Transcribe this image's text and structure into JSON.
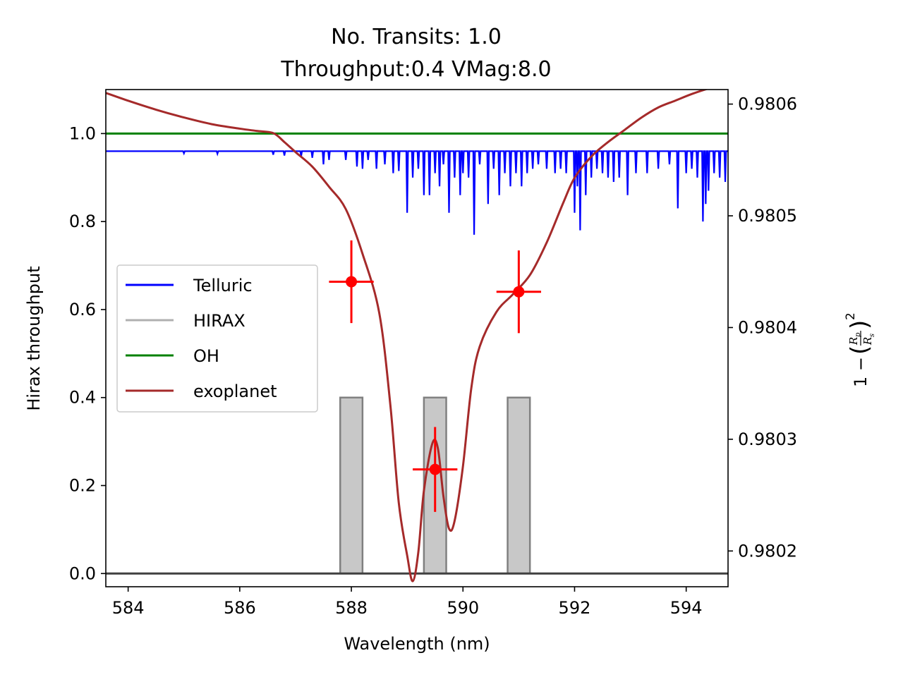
{
  "chart_data": {
    "type": "line",
    "title": [
      "No. Transits: 1.0",
      "Throughput:0.4 VMag:8.0"
    ],
    "xlabel": "Wavelength (nm)",
    "ylabel": "Hirax throughput",
    "y2label": "1 − (Rp/Rs)²",
    "y2label_parts": {
      "prefix": "1 −",
      "numerator": "R",
      "numerator_sub": "p",
      "denominator": "R",
      "denominator_sub": "s",
      "power": "2"
    },
    "xlim": [
      583.6,
      594.75
    ],
    "ylim": [
      -0.03,
      1.1
    ],
    "y2lim": [
      0.980168,
      0.980613
    ],
    "xticks": [
      584,
      586,
      588,
      590,
      592,
      594
    ],
    "xtick_labels": [
      "584",
      "586",
      "588",
      "590",
      "592",
      "594"
    ],
    "yticks": [
      0.0,
      0.2,
      0.4,
      0.6,
      0.8,
      1.0
    ],
    "ytick_labels": [
      "0.0",
      "0.2",
      "0.4",
      "0.6",
      "0.8",
      "1.0"
    ],
    "y2ticks": [
      0.9802,
      0.9803,
      0.9804,
      0.9805,
      0.9806
    ],
    "y2tick_labels": [
      "0.9802",
      "0.9803",
      "0.9804",
      "0.9805",
      "0.9806"
    ],
    "grid": false,
    "legend": {
      "placement": "center-left",
      "entries": [
        {
          "label": "Telluric",
          "color": "#0000ff"
        },
        {
          "label": "HIRAX",
          "color": "#b0b0b0"
        },
        {
          "label": "OH",
          "color": "#008000"
        },
        {
          "label": "exoplanet",
          "color": "#a52a2a"
        }
      ]
    },
    "series": [
      {
        "name": "OH",
        "color": "#008000",
        "axis": "left",
        "x": [
          583.6,
          594.75
        ],
        "y": [
          1.0,
          1.0
        ]
      },
      {
        "name": "HIRAX",
        "color": "#808080",
        "axis": "left",
        "bands": [
          {
            "x0": 587.8,
            "x1": 588.2,
            "height": 0.4
          },
          {
            "x0": 589.3,
            "x1": 589.7,
            "height": 0.4
          },
          {
            "x0": 590.8,
            "x1": 591.2,
            "height": 0.4
          }
        ],
        "baseline": 0.0
      },
      {
        "name": "Telluric",
        "color": "#0000ff",
        "axis": "left",
        "continuum": 0.96,
        "lines": [
          {
            "x": 585.0,
            "depth": 0.005
          },
          {
            "x": 585.6,
            "depth": 0.006
          },
          {
            "x": 586.6,
            "depth": 0.008
          },
          {
            "x": 586.8,
            "depth": 0.01
          },
          {
            "x": 587.1,
            "depth": 0.012
          },
          {
            "x": 587.3,
            "depth": 0.015
          },
          {
            "x": 587.5,
            "depth": 0.03
          },
          {
            "x": 587.6,
            "depth": 0.02
          },
          {
            "x": 587.9,
            "depth": 0.02
          },
          {
            "x": 588.1,
            "depth": 0.035
          },
          {
            "x": 588.2,
            "depth": 0.04
          },
          {
            "x": 588.3,
            "depth": 0.02
          },
          {
            "x": 588.45,
            "depth": 0.04
          },
          {
            "x": 588.6,
            "depth": 0.03
          },
          {
            "x": 588.75,
            "depth": 0.05
          },
          {
            "x": 588.85,
            "depth": 0.045
          },
          {
            "x": 589.0,
            "depth": 0.14
          },
          {
            "x": 589.1,
            "depth": 0.06
          },
          {
            "x": 589.2,
            "depth": 0.04
          },
          {
            "x": 589.3,
            "depth": 0.1
          },
          {
            "x": 589.4,
            "depth": 0.1
          },
          {
            "x": 589.5,
            "depth": 0.05
          },
          {
            "x": 589.58,
            "depth": 0.08
          },
          {
            "x": 589.65,
            "depth": 0.03
          },
          {
            "x": 589.75,
            "depth": 0.14
          },
          {
            "x": 589.85,
            "depth": 0.06
          },
          {
            "x": 589.95,
            "depth": 0.1
          },
          {
            "x": 590.0,
            "depth": 0.05
          },
          {
            "x": 590.1,
            "depth": 0.06
          },
          {
            "x": 590.2,
            "depth": 0.19
          },
          {
            "x": 590.3,
            "depth": 0.03
          },
          {
            "x": 590.45,
            "depth": 0.12
          },
          {
            "x": 590.55,
            "depth": 0.04
          },
          {
            "x": 590.65,
            "depth": 0.1
          },
          {
            "x": 590.75,
            "depth": 0.05
          },
          {
            "x": 590.85,
            "depth": 0.08
          },
          {
            "x": 590.95,
            "depth": 0.05
          },
          {
            "x": 591.05,
            "depth": 0.08
          },
          {
            "x": 591.15,
            "depth": 0.05
          },
          {
            "x": 591.25,
            "depth": 0.04
          },
          {
            "x": 591.35,
            "depth": 0.03
          },
          {
            "x": 591.5,
            "depth": 0.04
          },
          {
            "x": 591.65,
            "depth": 0.05
          },
          {
            "x": 591.75,
            "depth": 0.04
          },
          {
            "x": 591.85,
            "depth": 0.05
          },
          {
            "x": 592.0,
            "depth": 0.14
          },
          {
            "x": 592.05,
            "depth": 0.08
          },
          {
            "x": 592.1,
            "depth": 0.18
          },
          {
            "x": 592.2,
            "depth": 0.1
          },
          {
            "x": 592.3,
            "depth": 0.06
          },
          {
            "x": 592.4,
            "depth": 0.04
          },
          {
            "x": 592.5,
            "depth": 0.05
          },
          {
            "x": 592.6,
            "depth": 0.06
          },
          {
            "x": 592.7,
            "depth": 0.07
          },
          {
            "x": 592.8,
            "depth": 0.06
          },
          {
            "x": 592.95,
            "depth": 0.1
          },
          {
            "x": 593.1,
            "depth": 0.05
          },
          {
            "x": 593.3,
            "depth": 0.05
          },
          {
            "x": 593.5,
            "depth": 0.04
          },
          {
            "x": 593.7,
            "depth": 0.03
          },
          {
            "x": 593.85,
            "depth": 0.13
          },
          {
            "x": 594.0,
            "depth": 0.05
          },
          {
            "x": 594.1,
            "depth": 0.04
          },
          {
            "x": 594.2,
            "depth": 0.06
          },
          {
            "x": 594.3,
            "depth": 0.16
          },
          {
            "x": 594.35,
            "depth": 0.12
          },
          {
            "x": 594.4,
            "depth": 0.09
          },
          {
            "x": 594.5,
            "depth": 0.05
          },
          {
            "x": 594.6,
            "depth": 0.06
          },
          {
            "x": 594.7,
            "depth": 0.07
          }
        ]
      },
      {
        "name": "exoplanet",
        "color": "#a52a2a",
        "axis": "right",
        "x": [
          583.6,
          584.0,
          584.5,
          585.0,
          585.5,
          586.0,
          586.3,
          586.6,
          586.8,
          587.0,
          587.3,
          587.6,
          587.9,
          588.2,
          588.5,
          588.7,
          588.85,
          589.0,
          589.1,
          589.2,
          589.3,
          589.45,
          589.55,
          589.65,
          589.75,
          589.85,
          590.0,
          590.15,
          590.3,
          590.6,
          590.9,
          591.2,
          591.5,
          591.8,
          592.0,
          592.3,
          592.6,
          592.9,
          593.2,
          593.5,
          593.8,
          594.1,
          594.4,
          594.75
        ],
        "y": [
          0.98061,
          0.980603,
          0.980595,
          0.980588,
          0.980582,
          0.980578,
          0.980576,
          0.980574,
          0.980566,
          0.980557,
          0.980544,
          0.980526,
          0.980506,
          0.980466,
          0.980413,
          0.98033,
          0.980243,
          0.980196,
          0.980173,
          0.980199,
          0.980254,
          0.980296,
          0.980292,
          0.980249,
          0.98022,
          0.980227,
          0.980276,
          0.980346,
          0.980383,
          0.980414,
          0.98043,
          0.980447,
          0.980476,
          0.980512,
          0.980534,
          0.980553,
          0.980566,
          0.980577,
          0.980588,
          0.980597,
          0.980603,
          0.980609,
          0.980614,
          0.980619
        ]
      }
    ],
    "errorbars": {
      "color": "#ff0000",
      "axis": "right",
      "points": [
        {
          "x": 588.0,
          "y": 0.980441,
          "xerr": 0.4,
          "yerr": 3.7e-05
        },
        {
          "x": 589.5,
          "y": 0.980273,
          "xerr": 0.4,
          "yerr": 3.8e-05
        },
        {
          "x": 591.0,
          "y": 0.980432,
          "xerr": 0.4,
          "yerr": 3.7e-05
        }
      ]
    }
  }
}
